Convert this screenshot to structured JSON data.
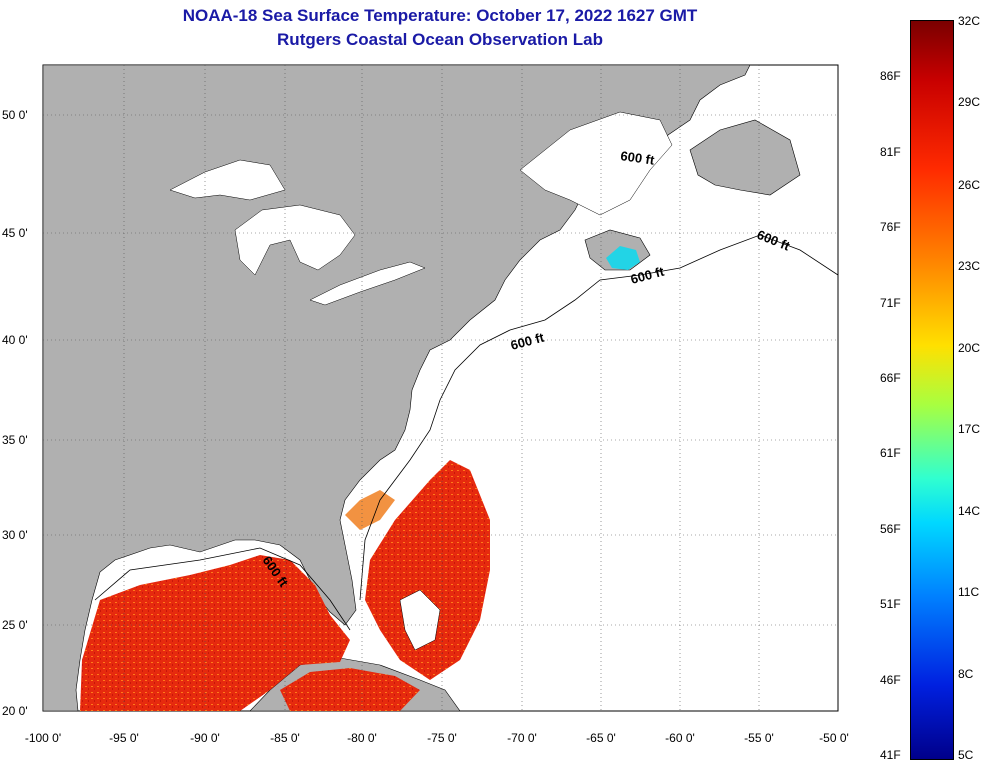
{
  "title": "NOAA-18 Sea Surface Temperature:  October 17, 2022 1627 GMT",
  "subtitle": "Rutgers Coastal Ocean Observation Lab",
  "lat_labels": [
    "50 0'",
    "45 0'",
    "40 0'",
    "35 0'",
    "30 0'",
    "25 0'",
    "20 0'"
  ],
  "lon_labels": [
    "-100 0'",
    "-95 0'",
    "-90 0'",
    "-85 0'",
    "-80 0'",
    "-75 0'",
    "-70 0'",
    "-65 0'",
    "-60 0'",
    "-55 0'",
    "-50 0'"
  ],
  "contour_labels": [
    "600 ft",
    "600 ft",
    "600 ft",
    "600 ft",
    "600 ft"
  ],
  "colorbar": {
    "celsius": [
      "32C",
      "29C",
      "26C",
      "23C",
      "20C",
      "17C",
      "14C",
      "11C",
      "8C",
      "5C"
    ],
    "fahrenheit": [
      "86F",
      "81F",
      "76F",
      "71F",
      "66F",
      "61F",
      "56F",
      "51F",
      "46F",
      "41F"
    ]
  },
  "colors": {
    "land": "#b0b0b0",
    "title": "#1a1aa6",
    "sst_warm": "#e8200c",
    "sst_cool": "#22d4e6"
  }
}
